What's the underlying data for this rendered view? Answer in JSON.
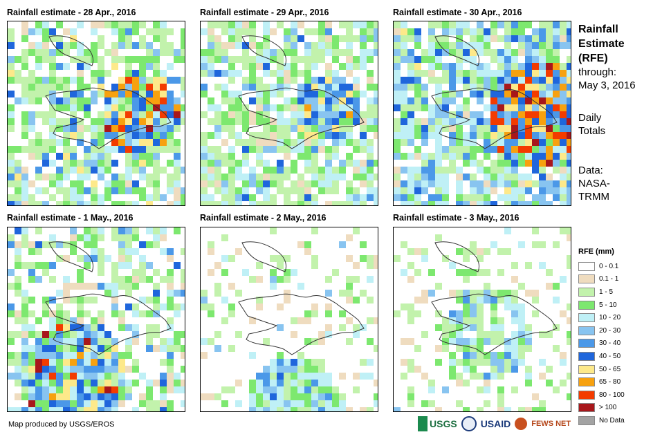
{
  "panels": [
    {
      "title": "Rainfall estimate - 28 Apr., 2016"
    },
    {
      "title": "Rainfall estimate - 29 Apr., 2016"
    },
    {
      "title": "Rainfall estimate - 30 Apr., 2016"
    },
    {
      "title": "Rainfall estimate - 1 May., 2016"
    },
    {
      "title": "Rainfall estimate - 2 May., 2016"
    },
    {
      "title": "Rainfall estimate - 3 May., 2016"
    }
  ],
  "side": {
    "title_1": "Rainfall",
    "title_2": "Estimate",
    "title_3": "(RFE)",
    "through": "through:",
    "date": "May 3, 2016",
    "daily_1": "Daily",
    "daily_2": "Totals",
    "data_1": "Data:",
    "data_2": "NASA-",
    "data_3": "TRMM"
  },
  "legend": {
    "title": "RFE (mm)",
    "items": [
      {
        "label": "0 - 0.1",
        "color": "#ffffff"
      },
      {
        "label": "0.1 - 1",
        "color": "#efdcbf"
      },
      {
        "label": "1 - 5",
        "color": "#c2f2ac"
      },
      {
        "label": "5 - 10",
        "color": "#7de86f"
      },
      {
        "label": "10 - 20",
        "color": "#bff0f6"
      },
      {
        "label": "20 - 30",
        "color": "#88c4f0"
      },
      {
        "label": "30 - 40",
        "color": "#4b98e8"
      },
      {
        "label": "40 - 50",
        "color": "#1f66dc"
      },
      {
        "label": "50 - 65",
        "color": "#fde98a"
      },
      {
        "label": "65 - 80",
        "color": "#f7a10f"
      },
      {
        "label": "80 - 100",
        "color": "#f33b00"
      },
      {
        "label": "> 100",
        "color": "#a8171b"
      },
      {
        "label": "No Data",
        "color": "#a3a3a3"
      }
    ]
  },
  "credit": "Map produced by USGS/EROS",
  "logos": {
    "usgs": "USGS",
    "usaid": "USAID",
    "fews": "FEWS NET"
  }
}
